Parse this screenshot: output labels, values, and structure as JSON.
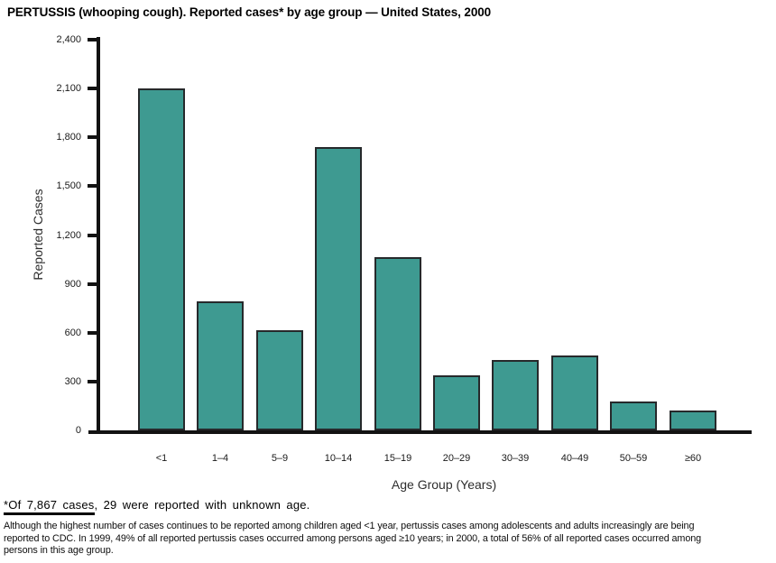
{
  "header": {
    "title": "PERTUSSIS (whooping cough). Reported cases* by age group — United States, 2000"
  },
  "chart_data": {
    "type": "bar",
    "title": "PERTUSSIS (whooping cough). Reported cases* by age group — United States, 2000",
    "categories": [
      "<1",
      "1–4",
      "5–9",
      "10–14",
      "15–19",
      "20–29",
      "30–39",
      "40–49",
      "50–59",
      "≥60"
    ],
    "values": [
      2100,
      790,
      615,
      1740,
      1065,
      340,
      430,
      460,
      175,
      120
    ],
    "xlabel": "Age Group (Years)",
    "ylabel": "Reported Cases",
    "ylim": [
      0,
      2400
    ],
    "ytick_interval": 300,
    "ytick_labels": [
      "0",
      "300",
      "600",
      "900",
      "1,200",
      "1,500",
      "1,800",
      "2,100",
      "2,400"
    ],
    "grid": false,
    "legend": false,
    "bar_fill": "#3E9A91",
    "bar_border": "#26292B",
    "axis_color": "#121212"
  },
  "footnote": {
    "underlined": "*Of 7,867 cases",
    "rest": ", 29 were reported with unknown age."
  },
  "note": "Although the highest number of cases continues to be reported among children aged <1 year, pertussis cases among adolescents and adults increasingly are being\nreported to CDC. In 1999, 49% of all reported pertussis cases occurred among persons aged ≥10 years; in 2000, a total of 56% of all reported cases occurred among\npersons in this age group."
}
